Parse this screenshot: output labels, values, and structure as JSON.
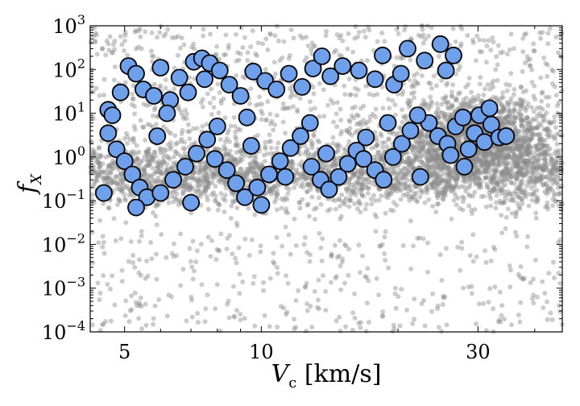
{
  "chart_data": {
    "type": "scatter",
    "title": "",
    "xlabel": {
      "main": "V",
      "sub": "c",
      "unit": " [km/s]"
    },
    "ylabel": {
      "main": "f",
      "sub": "X"
    },
    "xscale": "log",
    "yscale": "log",
    "xlim": [
      4.2,
      46
    ],
    "ylim": [
      0.0001,
      1000
    ],
    "grid": false,
    "legend": "none",
    "x_ticks": [
      {
        "value": 5,
        "label": "5"
      },
      {
        "value": 10,
        "label": "10"
      },
      {
        "value": 30,
        "label": "30"
      }
    ],
    "y_ticks": [
      {
        "value": 0.0001,
        "base": "10",
        "exp": "−4"
      },
      {
        "value": 0.001,
        "base": "10",
        "exp": "−3"
      },
      {
        "value": 0.01,
        "base": "10",
        "exp": "−2"
      },
      {
        "value": 0.1,
        "base": "10",
        "exp": "−1"
      },
      {
        "value": 1,
        "base": "10",
        "exp": "0"
      },
      {
        "value": 10,
        "base": "10",
        "exp": "1"
      },
      {
        "value": 100,
        "base": "10",
        "exp": "2"
      },
      {
        "value": 1000,
        "base": "10",
        "exp": "3"
      }
    ],
    "colors": {
      "background_points": "#8c8c8c",
      "highlight_fill": "#6fa0ec",
      "highlight_edge": "#000000"
    },
    "series": [
      {
        "role": "background",
        "approx_count": 5000,
        "x_range": [
          4.2,
          46
        ],
        "y_range": [
          0.0001,
          1000
        ],
        "density_peaks": [
          {
            "x": 30,
            "y": 3,
            "note": "dense cloud"
          },
          {
            "x": 8,
            "y": 0.5
          }
        ]
      },
      {
        "role": "highlighted",
        "points": [
          [
            4.6,
            12
          ],
          [
            4.7,
            9
          ],
          [
            4.9,
            30
          ],
          [
            5.1,
            120
          ],
          [
            5.3,
            80
          ],
          [
            5.5,
            35
          ],
          [
            5.8,
            25
          ],
          [
            6.0,
            110
          ],
          [
            6.3,
            20
          ],
          [
            6.6,
            65
          ],
          [
            6.9,
            30
          ],
          [
            7.1,
            150
          ],
          [
            7.4,
            180
          ],
          [
            7.7,
            140
          ],
          [
            7.5,
            60
          ],
          [
            8.1,
            95
          ],
          [
            8.5,
            45
          ],
          [
            9.0,
            25
          ],
          [
            9.6,
            90
          ],
          [
            10.2,
            55
          ],
          [
            10.8,
            35
          ],
          [
            11.5,
            80
          ],
          [
            12.3,
            40
          ],
          [
            13.0,
            105
          ],
          [
            13.6,
            200
          ],
          [
            14.2,
            70
          ],
          [
            15.1,
            120
          ],
          [
            16.4,
            95
          ],
          [
            17.8,
            60
          ],
          [
            18.5,
            210
          ],
          [
            19.6,
            45
          ],
          [
            21.0,
            300
          ],
          [
            20.3,
            80
          ],
          [
            22.9,
            160
          ],
          [
            24.8,
            380
          ],
          [
            26.5,
            210
          ],
          [
            25.5,
            95
          ],
          [
            6.2,
            10
          ],
          [
            9.3,
            8
          ],
          [
            12.8,
            6
          ],
          [
            4.6,
            3.5
          ],
          [
            4.8,
            1.5
          ],
          [
            5.0,
            0.8
          ],
          [
            5.2,
            0.4
          ],
          [
            5.4,
            0.2
          ],
          [
            5.6,
            0.12
          ],
          [
            6.0,
            0.15
          ],
          [
            6.4,
            0.3
          ],
          [
            6.8,
            0.6
          ],
          [
            7.2,
            1.2
          ],
          [
            7.6,
            2.5
          ],
          [
            8.0,
            5
          ],
          [
            8.4,
            0.5
          ],
          [
            8.8,
            0.25
          ],
          [
            9.2,
            0.12
          ],
          [
            9.8,
            0.2
          ],
          [
            10.4,
            0.4
          ],
          [
            11.0,
            0.8
          ],
          [
            11.6,
            1.6
          ],
          [
            12.2,
            3
          ],
          [
            12.9,
            0.6
          ],
          [
            13.5,
            0.3
          ],
          [
            14.1,
            0.18
          ],
          [
            14.8,
            0.35
          ],
          [
            15.5,
            0.7
          ],
          [
            16.2,
            1.4
          ],
          [
            17.0,
            2.8
          ],
          [
            17.8,
            0.5
          ],
          [
            18.6,
            0.3
          ],
          [
            19.5,
            1
          ],
          [
            20.4,
            2
          ],
          [
            21.3,
            4
          ],
          [
            22.4,
            0.35
          ],
          [
            23.4,
            6
          ],
          [
            24.5,
            3
          ],
          [
            25.7,
            2
          ],
          [
            26.8,
            5
          ],
          [
            27.8,
            8
          ],
          [
            28.6,
            1.5
          ],
          [
            29.5,
            3.5
          ],
          [
            30.2,
            9
          ],
          [
            31.0,
            2.2
          ],
          [
            32.1,
            5.5
          ],
          [
            33.4,
            2.8
          ],
          [
            34.6,
            3
          ],
          [
            31.8,
            13
          ],
          [
            5.9,
            3
          ],
          [
            7.9,
            0.9
          ],
          [
            9.5,
            1.8
          ],
          [
            11.3,
            0.35
          ],
          [
            13.9,
            1.2
          ],
          [
            16.8,
            0.9
          ],
          [
            19.0,
            6
          ],
          [
            22.1,
            9
          ],
          [
            26.1,
            1.1
          ],
          [
            28.0,
            0.6
          ],
          [
            5.3,
            0.07
          ],
          [
            7.0,
            0.09
          ],
          [
            10.0,
            0.08
          ],
          [
            4.5,
            0.15
          ]
        ]
      }
    ]
  }
}
